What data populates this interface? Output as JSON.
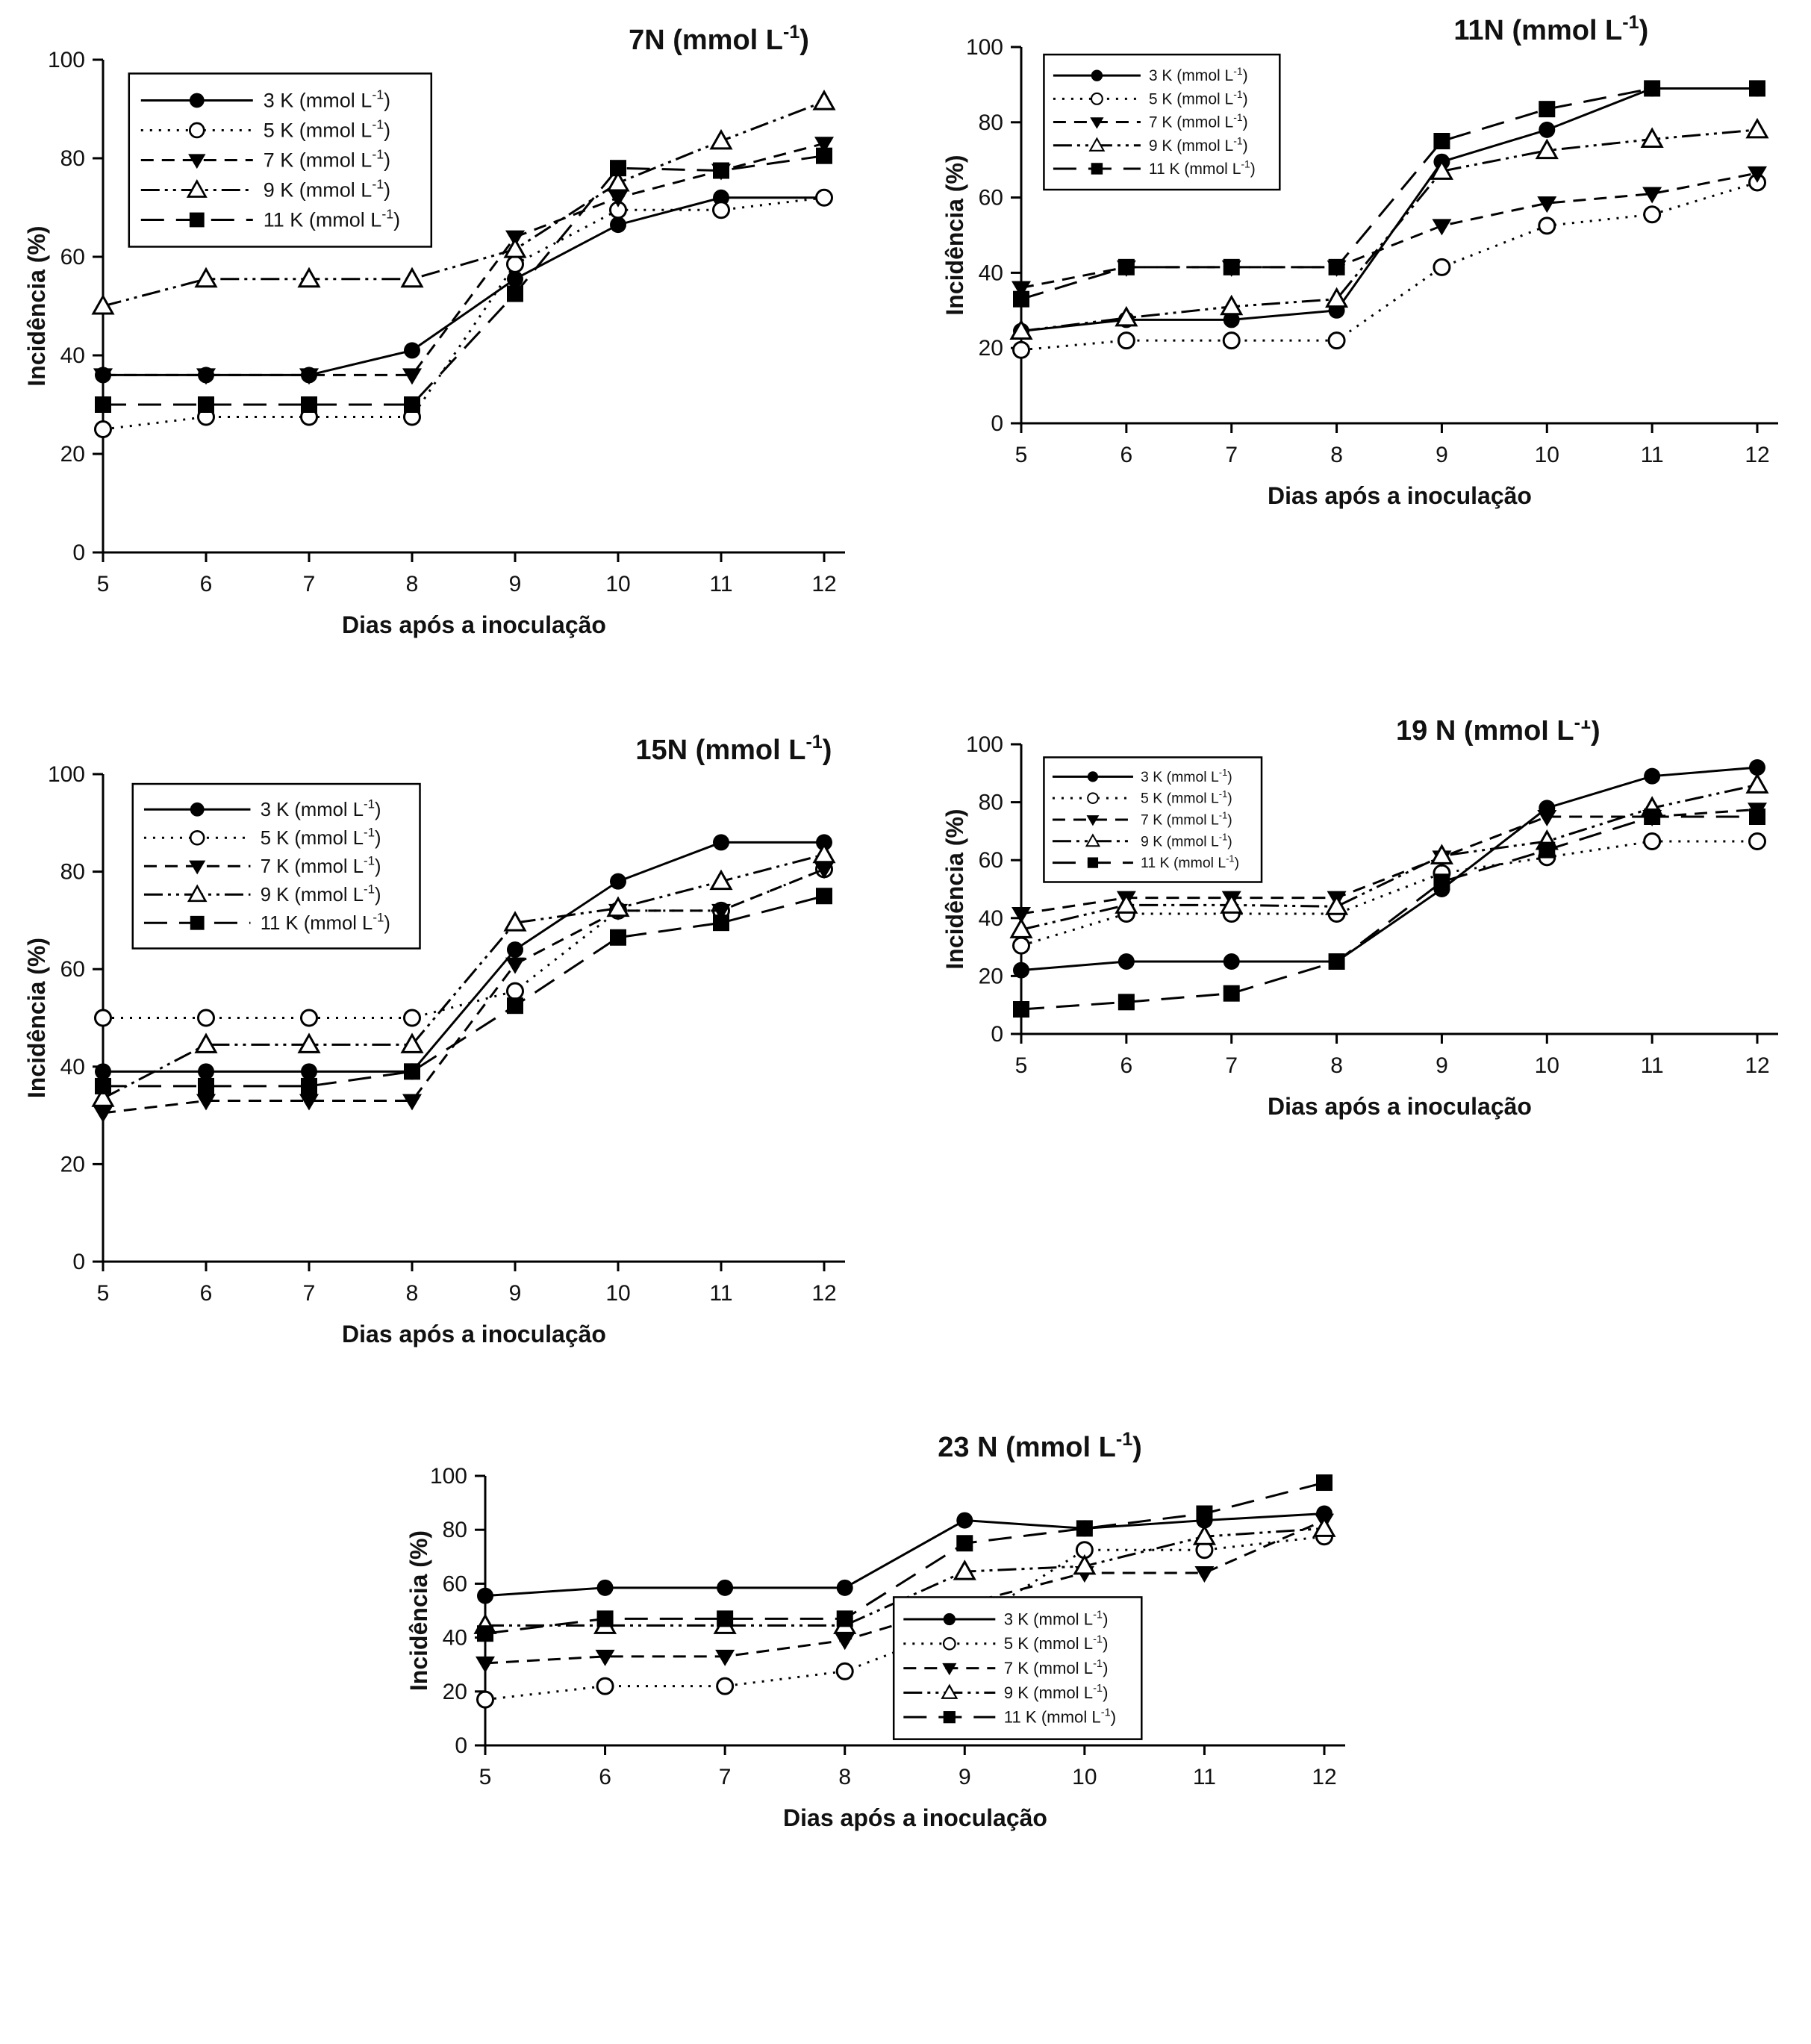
{
  "figure": {
    "background": "#ffffff",
    "line_color": "#000000",
    "text_color": "#111111",
    "xlabel": "Dias após a inoculação",
    "ylabel": "Incidência (%)",
    "unit_prefix": " (mmol L",
    "unit_sup": "-1",
    "unit_suffix": ")",
    "x_ticks": [
      5,
      6,
      7,
      8,
      9,
      10,
      11,
      12
    ],
    "y_ticks": [
      0,
      20,
      40,
      60,
      80,
      100
    ]
  },
  "legend_entries": [
    {
      "label": "3 K",
      "marker": "filled-circle",
      "line": "solid"
    },
    {
      "label": "5 K",
      "marker": "open-circle",
      "line": "dotted"
    },
    {
      "label": "7 K",
      "marker": "filled-triangle-down",
      "line": "dashed"
    },
    {
      "label": "9 K",
      "marker": "open-triangle-up",
      "line": "dash-dot-dot"
    },
    {
      "label": "11 K",
      "marker": "filled-square",
      "line": "long-dash"
    }
  ],
  "chart_data": [
    {
      "type": "line",
      "title": "7N",
      "xlabel": "Dias após a inoculação",
      "ylabel": "Incidência (%)",
      "x": [
        5,
        6,
        7,
        8,
        9,
        10,
        11,
        12
      ],
      "ylim": [
        0,
        100
      ],
      "grid": false,
      "legend_position": "top-left",
      "series": [
        {
          "name": "3 K",
          "values": [
            36,
            36,
            36,
            41,
            55.5,
            66.5,
            72,
            72
          ]
        },
        {
          "name": "5 K",
          "values": [
            25,
            27.5,
            27.5,
            27.5,
            58.5,
            69.5,
            69.5,
            72
          ]
        },
        {
          "name": "7 K",
          "values": [
            36,
            36,
            36,
            36,
            64,
            72,
            77.5,
            83
          ]
        },
        {
          "name": "9 K",
          "values": [
            50,
            55.5,
            55.5,
            55.5,
            61.5,
            75,
            83.5,
            91.5
          ]
        },
        {
          "name": "11 K",
          "values": [
            30,
            30,
            30,
            30,
            52.5,
            78,
            77.5,
            80.5
          ]
        }
      ]
    },
    {
      "type": "line",
      "title": "11N",
      "xlabel": "Dias após a inoculação",
      "ylabel": "Incidência (%)",
      "x": [
        5,
        6,
        7,
        8,
        9,
        10,
        11,
        12
      ],
      "ylim": [
        0,
        100
      ],
      "grid": false,
      "legend_position": "top-left",
      "series": [
        {
          "name": "3 K",
          "values": [
            24.5,
            27.5,
            27.5,
            30,
            69.5,
            78,
            89,
            89
          ]
        },
        {
          "name": "5 K",
          "values": [
            19.5,
            22,
            22,
            22,
            41.5,
            52.5,
            55.5,
            64
          ]
        },
        {
          "name": "7 K",
          "values": [
            36,
            41.5,
            41.5,
            41.5,
            52.5,
            58.5,
            61,
            66.5
          ]
        },
        {
          "name": "9 K",
          "values": [
            24.5,
            28,
            31,
            33,
            67,
            72.5,
            75.5,
            78
          ]
        },
        {
          "name": "11 K",
          "values": [
            33,
            41.5,
            41.5,
            41.5,
            75,
            83.5,
            89,
            89
          ]
        }
      ]
    },
    {
      "type": "line",
      "title": "15N",
      "xlabel": "Dias após a inoculação",
      "ylabel": "Incidência (%)",
      "x": [
        5,
        6,
        7,
        8,
        9,
        10,
        11,
        12
      ],
      "ylim": [
        0,
        100
      ],
      "grid": false,
      "legend_position": "top-left",
      "series": [
        {
          "name": "3 K",
          "values": [
            39,
            39,
            39,
            39,
            64,
            78,
            86,
            86
          ]
        },
        {
          "name": "5 K",
          "values": [
            50,
            50,
            50,
            50,
            55.5,
            72,
            72,
            80.5
          ]
        },
        {
          "name": "7 K",
          "values": [
            30.5,
            33,
            33,
            33,
            61,
            72,
            72,
            80.5
          ]
        },
        {
          "name": "9 K",
          "values": [
            33.5,
            44.5,
            44.5,
            44.5,
            69.5,
            72.5,
            78,
            83.5
          ]
        },
        {
          "name": "11 K",
          "values": [
            36,
            36,
            36,
            39,
            52.5,
            66.5,
            69.5,
            75
          ]
        }
      ]
    },
    {
      "type": "line",
      "title": "19 N",
      "xlabel": "Dias após a inoculação",
      "ylabel": "Incidência (%)",
      "x": [
        5,
        6,
        7,
        8,
        9,
        10,
        11,
        12
      ],
      "ylim": [
        0,
        100
      ],
      "grid": false,
      "legend_position": "top-left",
      "series": [
        {
          "name": "3 K",
          "values": [
            22,
            25,
            25,
            25,
            50,
            78,
            89,
            92
          ]
        },
        {
          "name": "5 K",
          "values": [
            30.5,
            41.5,
            41.5,
            41.5,
            55.5,
            61,
            66.5,
            66.5
          ]
        },
        {
          "name": "7 K",
          "values": [
            41.5,
            47,
            47,
            47,
            61,
            75,
            75,
            77.5
          ]
        },
        {
          "name": "9 K",
          "values": [
            36,
            44.5,
            44.5,
            44,
            61.5,
            66.5,
            78,
            86
          ]
        },
        {
          "name": "11 K",
          "values": [
            8.5,
            11,
            14,
            25,
            52.5,
            63.5,
            75,
            75
          ]
        }
      ]
    },
    {
      "type": "line",
      "title": "23 N",
      "xlabel": "Dias após a inoculação",
      "ylabel": "Incidência (%)",
      "x": [
        5,
        6,
        7,
        8,
        9,
        10,
        11,
        12
      ],
      "ylim": [
        0,
        100
      ],
      "grid": false,
      "legend_position": "bottom-right",
      "series": [
        {
          "name": "3 K",
          "values": [
            55.5,
            58.5,
            58.5,
            58.5,
            83.5,
            80.5,
            83.5,
            86
          ]
        },
        {
          "name": "5 K",
          "values": [
            17,
            22,
            22,
            27.5,
            44.5,
            72.5,
            72.5,
            77.5
          ]
        },
        {
          "name": "7 K",
          "values": [
            30.5,
            33,
            33,
            39,
            52.5,
            64,
            64,
            83.5
          ]
        },
        {
          "name": "9 K",
          "values": [
            44.5,
            44.5,
            44.5,
            44.5,
            64.5,
            66.5,
            77.5,
            80.5
          ]
        },
        {
          "name": "11 K",
          "values": [
            41.5,
            47,
            47,
            47,
            75,
            80.5,
            86,
            97.5
          ]
        }
      ]
    }
  ]
}
